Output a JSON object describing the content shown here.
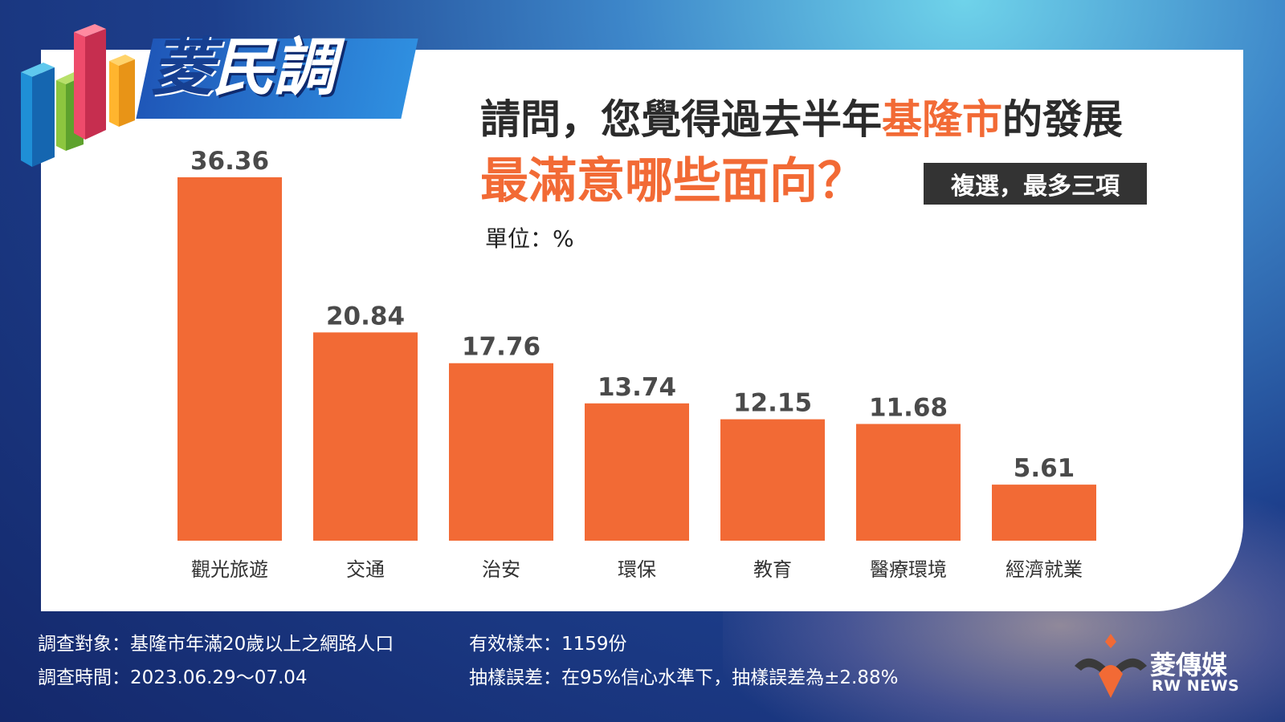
{
  "logo": {
    "part1": "菱",
    "part2": "民調"
  },
  "title": {
    "line1_prefix": "請問，您覺得過去半年",
    "line1_highlight": "基隆市",
    "line1_suffix": "的發展",
    "line2": "最滿意哪些面向？",
    "badge": "複選，最多三項",
    "unit": "單位：%"
  },
  "colors": {
    "bar": "#f26a35",
    "highlight": "#f26a35"
  },
  "chart_data": {
    "type": "bar",
    "categories": [
      "觀光旅遊",
      "交通",
      "治安",
      "環保",
      "教育",
      "醫療環境",
      "經濟就業"
    ],
    "values": [
      36.36,
      20.84,
      17.76,
      13.74,
      12.15,
      11.68,
      5.61
    ],
    "value_labels": [
      "36.36",
      "20.84",
      "17.76",
      "13.74",
      "12.15",
      "11.68",
      "5.61"
    ],
    "ylim": [
      0,
      36.36
    ]
  },
  "footer": {
    "target": "調查對象：基隆市年滿20歲以上之網路人口",
    "period": "調查時間：2023.06.29～07.04",
    "sample": "有效樣本：1159份",
    "error": "抽樣誤差：在95%信心水準下，抽樣誤差為±2.88%"
  },
  "brand": {
    "name_cn": "菱傳媒",
    "name_en": "RW NEWS"
  }
}
